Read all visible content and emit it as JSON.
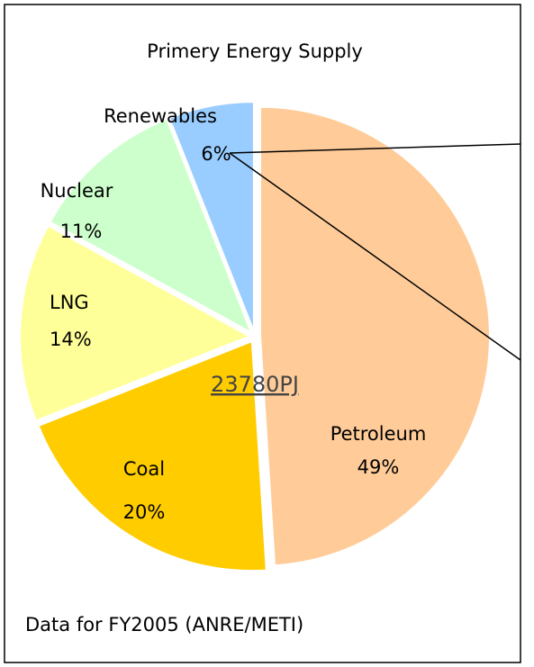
{
  "chart_data": {
    "type": "pie",
    "title": "Primery Energy Supply",
    "categories": [
      "Petroleum",
      "Coal",
      "LNG",
      "Nuclear",
      "Renewables"
    ],
    "values": [
      49,
      20,
      14,
      11,
      6
    ],
    "value_labels": [
      "49%",
      "20%",
      "14%",
      "11%",
      "6%"
    ],
    "colors": [
      "#FFCC99",
      "#FFCC00",
      "#FFFF99",
      "#CCFFCC",
      "#99CCFF"
    ],
    "center_label": "23780PJ",
    "source": "Data for FY2005 (ANRE/METI)"
  }
}
